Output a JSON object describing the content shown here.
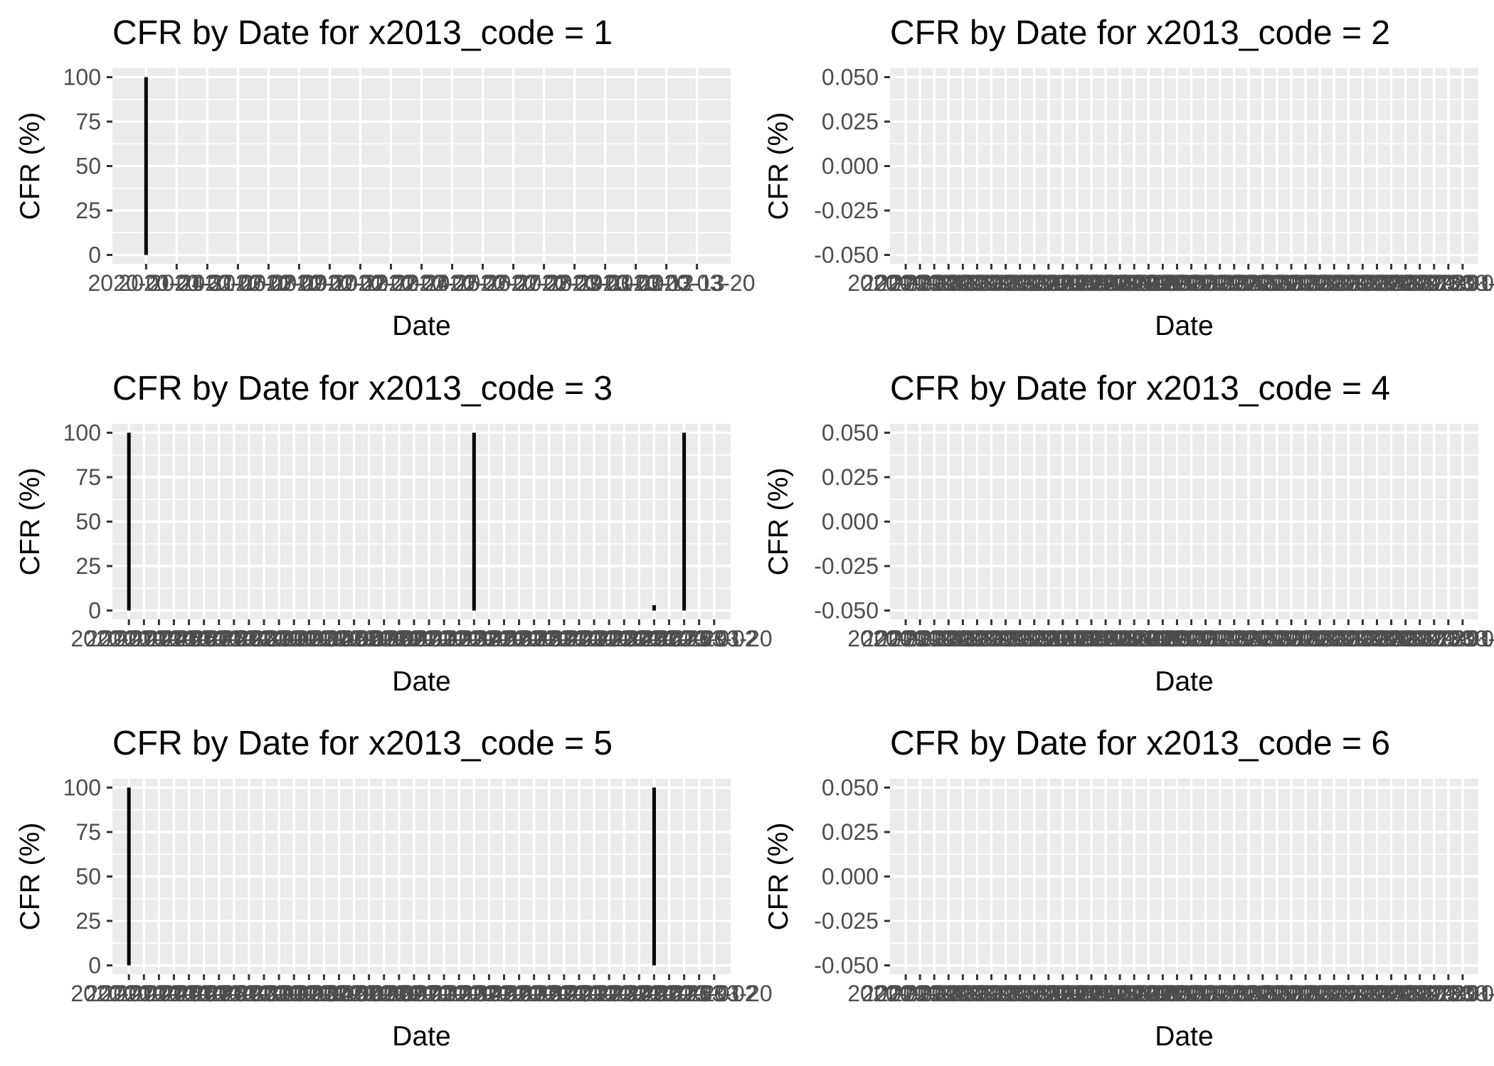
{
  "chart_data": [
    {
      "type": "bar",
      "title": "CFR by Date for x2013_code = 1",
      "xlabel": "Date",
      "ylabel": "CFR (%)",
      "ylim": [
        0,
        100
      ],
      "yticks": [
        "0",
        "25",
        "50",
        "75",
        "100"
      ],
      "xtick_labels": [
        "2020-01-24",
        "2020-01-31",
        "2020-02-06",
        "2020-02-08",
        "2020-02-09",
        "2020-02-10",
        "2020-02-12",
        "2020-02-22",
        "2020-02-24",
        "2020-02-25",
        "2020-02-26",
        "2020-02-27",
        "2020-02-28",
        "2020-02-29",
        "2020-03-01",
        "2020-03-02",
        "2020-03-12",
        "2020-03-13",
        "2020-03-20"
      ],
      "x": [
        "2020-01-24"
      ],
      "values": [
        100
      ],
      "grid": true
    },
    {
      "type": "bar",
      "title": "CFR by Date for x2013_code = 2",
      "xlabel": "Date",
      "ylabel": "CFR (%)",
      "ylim": [
        -0.05,
        0.05
      ],
      "yticks": [
        "-0.050",
        "-0.025",
        "0.000",
        "0.025",
        "0.050"
      ],
      "xtick_labels": [
        "2020-01-24",
        "2020-01-25",
        "2020-01-26",
        "2020-01-27",
        "2020-01-28",
        "2020-01-29",
        "2020-01-30",
        "2020-01-31",
        "2020-02-01",
        "2020-02-02",
        "2020-02-03",
        "2020-02-04",
        "2020-02-05",
        "2020-02-06",
        "2020-02-07",
        "2020-02-08",
        "2020-02-09",
        "2020-02-10",
        "2020-02-11",
        "2020-02-12",
        "2020-02-13",
        "2020-02-14",
        "2020-02-15",
        "2020-02-16",
        "2020-02-17",
        "2020-02-18",
        "2020-02-19",
        "2020-02-20",
        "2020-02-21",
        "2020-02-22",
        "2020-02-23",
        "2020-02-24",
        "2020-02-25",
        "2020-02-26",
        "2020-02-27",
        "2020-02-28",
        "2020-02-29",
        "2020-03-01",
        "2020-03-02",
        "2020-03-20"
      ],
      "x": [],
      "values": [],
      "grid": true
    },
    {
      "type": "bar",
      "title": "CFR by Date for x2013_code = 3",
      "xlabel": "Date",
      "ylabel": "CFR (%)",
      "ylim": [
        0,
        100
      ],
      "yticks": [
        "0",
        "25",
        "50",
        "75",
        "100"
      ],
      "xtick_labels": [
        "2020-01-24",
        "2020-01-25",
        "2020-01-26",
        "2020-01-27",
        "2020-01-28",
        "2020-01-29",
        "2020-01-30",
        "2020-01-31",
        "2020-02-01",
        "2020-02-02",
        "2020-02-03",
        "2020-02-04",
        "2020-02-05",
        "2020-02-06",
        "2020-02-07",
        "2020-02-08",
        "2020-02-09",
        "2020-02-10",
        "2020-02-11",
        "2020-02-12",
        "2020-02-13",
        "2020-02-14",
        "2020-02-15",
        "2020-02-16",
        "2020-02-17",
        "2020-02-18",
        "2020-02-19",
        "2020-02-20",
        "2020-02-21",
        "2020-02-22",
        "2020-02-23",
        "2020-02-24",
        "2020-02-25",
        "2020-02-26",
        "2020-02-27",
        "2020-02-28",
        "2020-02-29",
        "2020-03-01",
        "2020-03-02",
        "2020-03-20"
      ],
      "x": [
        "2020-01-24",
        "2020-02-16",
        "2020-02-28",
        "2020-03-01"
      ],
      "values": [
        100,
        100,
        3,
        100
      ],
      "grid": true
    },
    {
      "type": "bar",
      "title": "CFR by Date for x2013_code = 4",
      "xlabel": "Date",
      "ylabel": "CFR (%)",
      "ylim": [
        -0.05,
        0.05
      ],
      "yticks": [
        "-0.050",
        "-0.025",
        "0.000",
        "0.025",
        "0.050"
      ],
      "xtick_labels": [
        "2020-01-24",
        "2020-01-25",
        "2020-01-26",
        "2020-01-27",
        "2020-01-28",
        "2020-01-29",
        "2020-01-30",
        "2020-01-31",
        "2020-02-01",
        "2020-02-02",
        "2020-02-03",
        "2020-02-04",
        "2020-02-05",
        "2020-02-06",
        "2020-02-07",
        "2020-02-08",
        "2020-02-09",
        "2020-02-10",
        "2020-02-11",
        "2020-02-12",
        "2020-02-13",
        "2020-02-14",
        "2020-02-15",
        "2020-02-16",
        "2020-02-17",
        "2020-02-18",
        "2020-02-19",
        "2020-02-20",
        "2020-02-21",
        "2020-02-22",
        "2020-02-23",
        "2020-02-24",
        "2020-02-25",
        "2020-02-26",
        "2020-02-27",
        "2020-02-28",
        "2020-02-29",
        "2020-03-01",
        "2020-03-02",
        "2020-03-20"
      ],
      "x": [],
      "values": [],
      "grid": true
    },
    {
      "type": "bar",
      "title": "CFR by Date for x2013_code = 5",
      "xlabel": "Date",
      "ylabel": "CFR (%)",
      "ylim": [
        0,
        100
      ],
      "yticks": [
        "0",
        "25",
        "50",
        "75",
        "100"
      ],
      "xtick_labels": [
        "2020-01-24",
        "2020-01-25",
        "2020-01-26",
        "2020-01-27",
        "2020-01-28",
        "2020-01-29",
        "2020-01-30",
        "2020-01-31",
        "2020-02-01",
        "2020-02-02",
        "2020-02-03",
        "2020-02-04",
        "2020-02-05",
        "2020-02-06",
        "2020-02-07",
        "2020-02-08",
        "2020-02-09",
        "2020-02-10",
        "2020-02-11",
        "2020-02-12",
        "2020-02-13",
        "2020-02-14",
        "2020-02-15",
        "2020-02-16",
        "2020-02-17",
        "2020-02-18",
        "2020-02-19",
        "2020-02-20",
        "2020-02-21",
        "2020-02-22",
        "2020-02-23",
        "2020-02-24",
        "2020-02-25",
        "2020-02-26",
        "2020-02-27",
        "2020-02-28",
        "2020-02-29",
        "2020-03-01",
        "2020-03-02",
        "2020-03-20"
      ],
      "x": [
        "2020-01-24",
        "2020-02-28"
      ],
      "values": [
        100,
        100
      ],
      "grid": true
    },
    {
      "type": "bar",
      "title": "CFR by Date for x2013_code = 6",
      "xlabel": "Date",
      "ylabel": "CFR (%)",
      "ylim": [
        -0.05,
        0.05
      ],
      "yticks": [
        "-0.050",
        "-0.025",
        "0.000",
        "0.025",
        "0.050"
      ],
      "xtick_labels": [
        "2020-01-24",
        "2020-01-25",
        "2020-01-26",
        "2020-01-27",
        "2020-01-28",
        "2020-01-29",
        "2020-01-30",
        "2020-01-31",
        "2020-02-01",
        "2020-02-02",
        "2020-02-03",
        "2020-02-04",
        "2020-02-05",
        "2020-02-06",
        "2020-02-07",
        "2020-02-08",
        "2020-02-09",
        "2020-02-10",
        "2020-02-11",
        "2020-02-12",
        "2020-02-13",
        "2020-02-14",
        "2020-02-15",
        "2020-02-16",
        "2020-02-17",
        "2020-02-18",
        "2020-02-19",
        "2020-02-20",
        "2020-02-21",
        "2020-02-22",
        "2020-02-23",
        "2020-02-24",
        "2020-02-25",
        "2020-02-26",
        "2020-02-27",
        "2020-02-28",
        "2020-02-29",
        "2020-03-01",
        "2020-03-02",
        "2020-03-20"
      ],
      "x": [],
      "values": [],
      "grid": true
    }
  ],
  "colors": {
    "panel_background": "#ebebeb",
    "grid": "#ffffff",
    "bar": "#000000",
    "tick_label": "#4d4d4d"
  }
}
